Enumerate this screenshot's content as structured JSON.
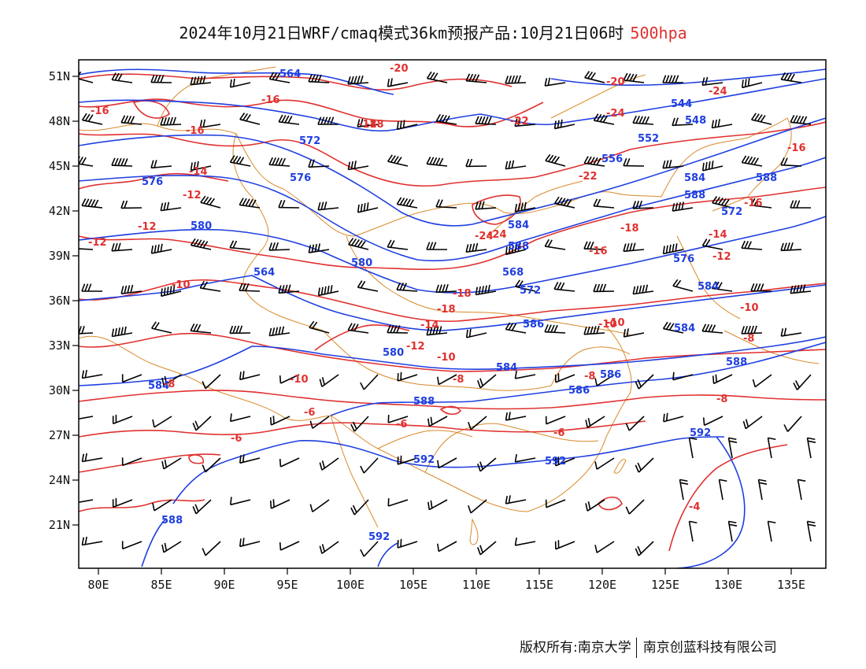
{
  "title": {
    "main": "2024年10月21日WRF/cmaq模式36km预报产品:10月21日06时",
    "level": "500hpa",
    "level_color": "#e0302f"
  },
  "colors": {
    "height_contour": "#1f3fe0",
    "temperature_contour": "#e0302f",
    "border": "#d98a2b",
    "wind_barb": "#000000",
    "frame": "#000000"
  },
  "axes": {
    "x_ticks": [
      "80E",
      "85E",
      "90E",
      "95E",
      "100E",
      "105E",
      "110E",
      "115E",
      "120E",
      "125E",
      "130E",
      "135E"
    ],
    "y_ticks": [
      "51N",
      "48N",
      "45N",
      "42N",
      "39N",
      "36N",
      "33N",
      "30N",
      "27N",
      "24N",
      "21N"
    ]
  },
  "height_labels": [
    "564",
    "544",
    "548",
    "552",
    "556",
    "572",
    "576",
    "576",
    "584",
    "588",
    "572",
    "580",
    "584",
    "588",
    "580",
    "564",
    "568",
    "572",
    "576",
    "584",
    "586",
    "584",
    "588",
    "580",
    "584",
    "586",
    "588",
    "592",
    "592",
    "592",
    "588",
    "592",
    "584",
    "586",
    "588"
  ],
  "temperature_labels": [
    "-20",
    "-20",
    "-24",
    "-16",
    "-16",
    "-16",
    "-18",
    "-22",
    "-24",
    "-16",
    "-14",
    "-12",
    "-12",
    "-12",
    "-10",
    "-22",
    "-24",
    "-18",
    "-16",
    "-14",
    "-12",
    "-10",
    "-16",
    "-18",
    "-18",
    "-14",
    "-12",
    "-10",
    "-10",
    "-10",
    "-8",
    "-8",
    "-8",
    "-8",
    "-6",
    "-6",
    "-6",
    "-6",
    "-4",
    "-8",
    "-10",
    "-18",
    "-24"
  ],
  "footer": {
    "copyright": "版权所有:南京大学",
    "company": "南京创蓝科技有限公司"
  }
}
